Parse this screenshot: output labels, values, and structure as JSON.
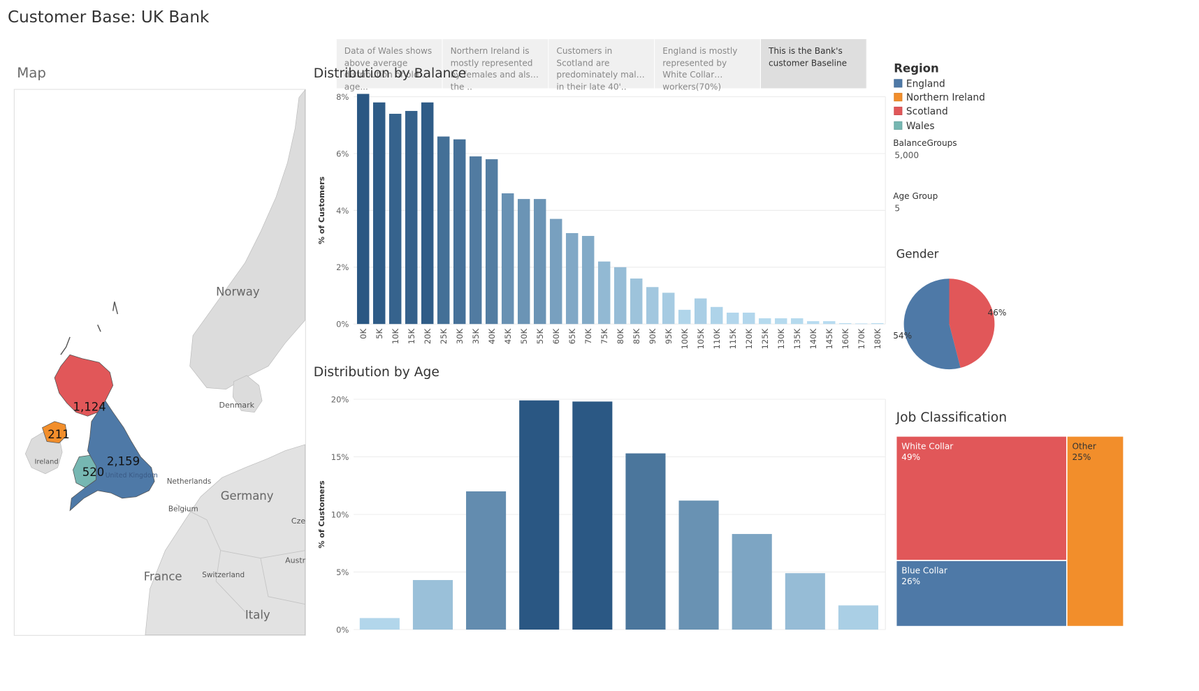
{
  "header": {
    "title": "Customer Base: UK Bank"
  },
  "map": {
    "title": "Map",
    "country_labels": [
      "Norway",
      "Denmark",
      "Ireland",
      "Netherlands",
      "Belgium",
      "Germany",
      "France",
      "Switzerland",
      "Italy",
      "Cze",
      "Austr",
      "United Kingdom"
    ],
    "regions": [
      {
        "name": "England",
        "count": "2,159",
        "color": "#4e79a7"
      },
      {
        "name": "Northern Ireland",
        "count": "211",
        "color": "#f28e2b"
      },
      {
        "name": "Scotland",
        "count": "1,124",
        "color": "#e15759"
      },
      {
        "name": "Wales",
        "count": "520",
        "color": "#76b7b2"
      }
    ]
  },
  "story": {
    "points": [
      {
        "text": "Data of Wales shows above average distribution of old age..."
      },
      {
        "text": "Northern Ireland is mostly represented by females and also the .."
      },
      {
        "text": "Customers in Scotland are predominately males in their late 40'.."
      },
      {
        "text": "England is mostly represented by White Collar workers(70%)"
      },
      {
        "text": "This is the Bank's customer Baseline"
      }
    ]
  },
  "legend": {
    "title": "Region",
    "items": [
      {
        "label": "England",
        "color": "#4e79a7"
      },
      {
        "label": "Northern Ireland",
        "color": "#f28e2b"
      },
      {
        "label": "Scotland",
        "color": "#e15759"
      },
      {
        "label": "Wales",
        "color": "#76b7b2"
      }
    ]
  },
  "parameters": {
    "balance_groups": {
      "label": "BalanceGroups",
      "value": "5,000"
    },
    "age_group": {
      "label": "Age Group",
      "value": "5"
    }
  },
  "chart_data": [
    {
      "id": "balance",
      "type": "bar",
      "title": "Distribution by Balance",
      "ylabel": "% of Customers",
      "ylim": [
        0,
        8
      ],
      "yticks": [
        "0%",
        "2%",
        "4%",
        "6%",
        "8%"
      ],
      "categories": [
        "0K",
        "5K",
        "10K",
        "15K",
        "20K",
        "25K",
        "30K",
        "35K",
        "40K",
        "45K",
        "50K",
        "55K",
        "60K",
        "65K",
        "70K",
        "75K",
        "80K",
        "85K",
        "90K",
        "95K",
        "100K",
        "105K",
        "110K",
        "115K",
        "120K",
        "125K",
        "130K",
        "135K",
        "140K",
        "145K",
        "160K",
        "170K",
        "180K"
      ],
      "values": [
        8.1,
        7.8,
        7.4,
        7.5,
        7.8,
        6.6,
        6.5,
        5.9,
        5.8,
        4.6,
        4.4,
        4.4,
        3.7,
        3.2,
        3.1,
        2.2,
        2.0,
        1.6,
        1.3,
        1.1,
        0.5,
        0.9,
        0.6,
        0.4,
        0.4,
        0.2,
        0.2,
        0.2,
        0.1,
        0.1,
        0.03,
        0.02,
        0.03
      ]
    },
    {
      "id": "age",
      "type": "bar",
      "title": "Distribution by Age",
      "ylabel": "% of Customers",
      "ylim": [
        0,
        20
      ],
      "yticks": [
        "0%",
        "5%",
        "10%",
        "15%",
        "20%"
      ],
      "values": [
        1.0,
        4.3,
        12.0,
        19.9,
        19.8,
        15.3,
        11.2,
        8.3,
        4.9,
        2.1
      ]
    },
    {
      "id": "gender",
      "type": "pie",
      "title": "Gender",
      "slices": [
        {
          "label": "54%",
          "value": 54,
          "color": "#4e79a7"
        },
        {
          "label": "46%",
          "value": 46,
          "color": "#e15759"
        }
      ]
    },
    {
      "id": "job",
      "type": "treemap",
      "title": "Job Classification",
      "items": [
        {
          "label": "White Collar",
          "pct": "49%",
          "value": 49,
          "color": "#e15759"
        },
        {
          "label": "Blue Collar",
          "pct": "26%",
          "value": 26,
          "color": "#4e79a7"
        },
        {
          "label": "Other",
          "pct": "25%",
          "value": 25,
          "color": "#f28e2b"
        }
      ]
    }
  ]
}
